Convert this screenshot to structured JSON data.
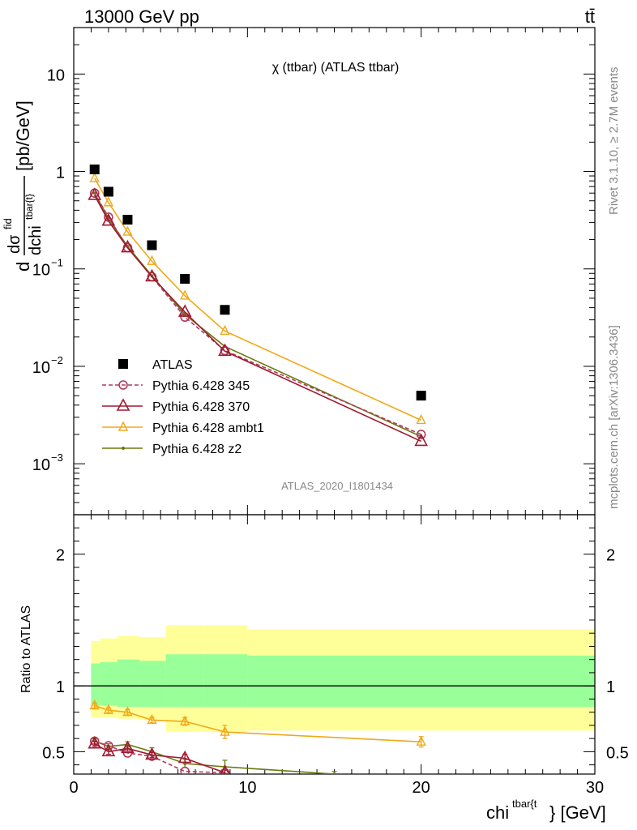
{
  "header": {
    "left": "13000 GeV pp",
    "right": "tt̄"
  },
  "side_text": {
    "rivet": "Rivet 3.1.10, ≥ 2.7M events",
    "mcplots": "mcplots.cern.ch [arXiv:1306.3436]"
  },
  "main_title": "χ (ttbar) (ATLAS ttbar)",
  "analysis_id": "ATLAS_2020_I1801434",
  "axes": {
    "ylabel_main": "dσ^fid / dchi^tbar{t} [pb/GeV]",
    "ylabel_main_parts": {
      "d1": "d",
      "sigma": "dσ",
      "fid": "fid",
      "den": "dchi",
      "sup": "tbar{t}",
      "unit": "[pb/GeV]"
    },
    "ylabel_ratio": "Ratio to ATLAS",
    "xlabel": "chi^tbar{t} [GeV]",
    "xlabel_parts": {
      "base": "chi",
      "sup": "tbar{t",
      "unit": "} [GeV]"
    }
  },
  "legend": {
    "entries": [
      {
        "label": "ATLAS",
        "color": "#000000",
        "marker": "square"
      },
      {
        "label": "Pythia 6.428 345",
        "color": "#b03a5b",
        "marker": "circle",
        "dash": true
      },
      {
        "label": "Pythia 6.428 370",
        "color": "#9e1a30",
        "marker": "triangle"
      },
      {
        "label": "Pythia 6.428 ambt1",
        "color": "#f0a818",
        "marker": "triangle-small"
      },
      {
        "label": "Pythia 6.428 z2",
        "color": "#6b7a10",
        "marker": "dot"
      }
    ]
  },
  "chart_data": [
    {
      "type": "scatter",
      "panel": "main",
      "scale": "log",
      "xlim": [
        0,
        30
      ],
      "ylim": [
        0.0003,
        30
      ],
      "x_ticks": [
        0,
        10,
        20,
        30
      ],
      "y_ticks": [
        {
          "value": 10,
          "base": "10",
          "exp": ""
        },
        {
          "value": 1,
          "base": "1",
          "exp": ""
        },
        {
          "value": 0.1,
          "base": "10",
          "exp": "−1"
        },
        {
          "value": 0.01,
          "base": "10",
          "exp": "−2"
        },
        {
          "value": 0.001,
          "base": "10",
          "exp": "−3"
        }
      ],
      "series": [
        {
          "name": "ATLAS",
          "x": [
            1.2,
            2.0,
            3.1,
            4.5,
            6.4,
            8.7,
            20
          ],
          "y": [
            1.05,
            0.62,
            0.32,
            0.175,
            0.079,
            0.038,
            0.005
          ]
        },
        {
          "name": "Pythia 6.428 345",
          "x": [
            1.2,
            2.0,
            3.1,
            4.5,
            6.4,
            8.7,
            20
          ],
          "y": [
            0.6,
            0.34,
            0.165,
            0.083,
            0.032,
            0.0145,
            0.002
          ]
        },
        {
          "name": "Pythia 6.428 370",
          "x": [
            1.2,
            2.0,
            3.1,
            4.5,
            6.4,
            8.7,
            20
          ],
          "y": [
            0.57,
            0.31,
            0.165,
            0.083,
            0.036,
            0.0143,
            0.0017
          ]
        },
        {
          "name": "Pythia 6.428 ambt1",
          "x": [
            1.2,
            2.0,
            3.1,
            4.5,
            6.4,
            8.7,
            20
          ],
          "y": [
            0.85,
            0.48,
            0.24,
            0.12,
            0.053,
            0.023,
            0.0028
          ]
        },
        {
          "name": "Pythia 6.428 z2",
          "x": [
            1.2,
            2.0,
            3.1,
            4.5,
            6.4,
            8.7,
            20
          ],
          "y": [
            0.6,
            0.33,
            0.17,
            0.085,
            0.034,
            0.016,
            0.0019
          ]
        }
      ]
    },
    {
      "type": "line",
      "panel": "ratio",
      "xlim": [
        0,
        30
      ],
      "ylim": [
        0.33,
        2.3
      ],
      "y_ticks": [
        0.5,
        1,
        2
      ],
      "bands": {
        "x_edges": [
          1,
          1.5,
          2.5,
          3.8,
          5.3,
          7.5,
          10,
          30
        ],
        "yellow": [
          [
            0.76,
            1.34
          ],
          [
            0.76,
            1.36
          ],
          [
            0.75,
            1.38
          ],
          [
            0.74,
            1.37
          ],
          [
            0.65,
            1.46
          ],
          [
            0.65,
            1.46
          ],
          [
            0.66,
            1.43
          ]
        ],
        "green": [
          [
            0.85,
            1.17
          ],
          [
            0.85,
            1.18
          ],
          [
            0.84,
            1.2
          ],
          [
            0.84,
            1.19
          ],
          [
            0.84,
            1.24
          ],
          [
            0.84,
            1.24
          ],
          [
            0.84,
            1.23
          ]
        ]
      },
      "series": [
        {
          "name": "Pythia 6.428 345",
          "x": [
            1.2,
            2.0,
            3.1,
            4.5,
            6.4,
            8.7
          ],
          "y": [
            0.58,
            0.545,
            0.49,
            0.465,
            0.35,
            0.34
          ]
        },
        {
          "name": "Pythia 6.428 370",
          "x": [
            1.2,
            2.0,
            3.1,
            4.5,
            6.4,
            8.7
          ],
          "y": [
            0.56,
            0.5,
            0.525,
            0.475,
            0.45,
            0.34
          ]
        },
        {
          "name": "Pythia 6.428 ambt1",
          "x": [
            1.2,
            2.0,
            3.1,
            4.5,
            6.4,
            8.7,
            20
          ],
          "y": [
            0.85,
            0.815,
            0.8,
            0.74,
            0.73,
            0.65,
            0.575
          ]
        },
        {
          "name": "Pythia 6.428 z2",
          "x": [
            1.2,
            2.0,
            3.1,
            4.5,
            6.4,
            8.7,
            15
          ],
          "y": [
            0.58,
            0.54,
            0.555,
            0.5,
            0.41,
            0.385,
            0.33
          ]
        }
      ],
      "error_bars": {
        "Pythia 6.428 ambt1": [
          0.02,
          0.02,
          0.02,
          0.02,
          0.03,
          0.05,
          0.04
        ],
        "Pythia 6.428 370": [
          0.02,
          0.02,
          0.02,
          0.02,
          0.03,
          0.02
        ],
        "Pythia 6.428 z2": [
          0.02,
          0.02,
          0.02,
          0.03,
          0.03,
          0.05,
          0.02
        ]
      }
    }
  ]
}
